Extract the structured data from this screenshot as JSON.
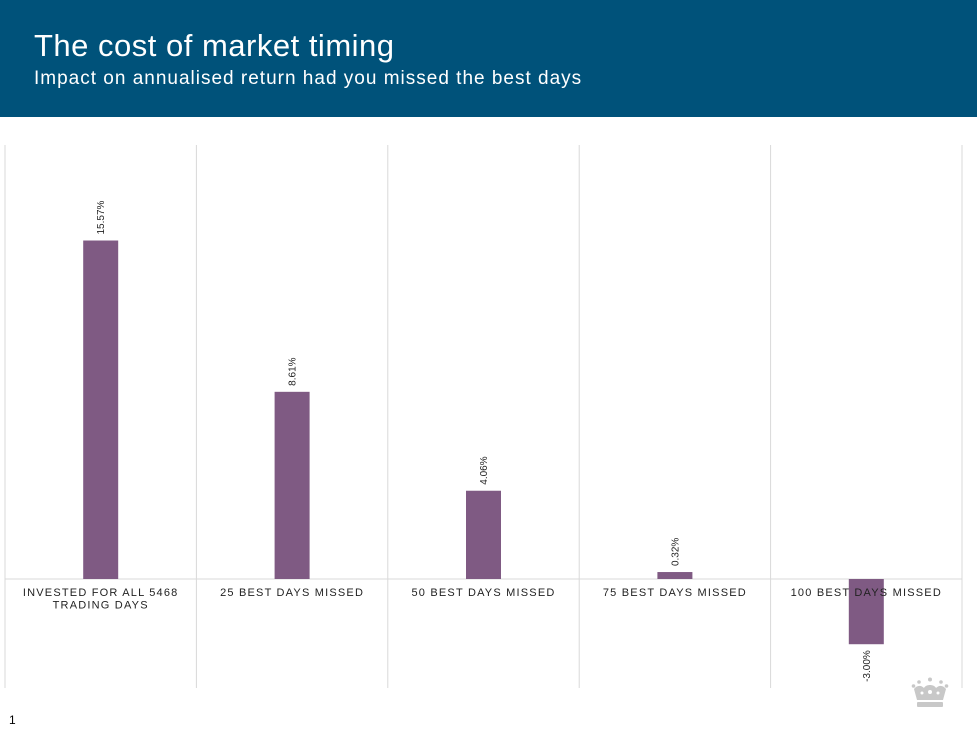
{
  "header": {
    "title": "The cost of market timing",
    "subtitle": "Impact on annualised return had you missed the best days"
  },
  "footer": {
    "page_number": "1"
  },
  "colors": {
    "header_bg": "#00527a",
    "bar": "#7f5a83",
    "grid": "#d9d9d9"
  },
  "logo": {
    "icon": "crown-icon"
  },
  "chart_data": {
    "type": "bar",
    "title": "",
    "xlabel": "",
    "ylabel": "",
    "categories": [
      [
        "INVESTED FOR ALL 5468",
        "TRADING DAYS"
      ],
      [
        "25 BEST DAYS MISSED"
      ],
      [
        "50 BEST DAYS MISSED"
      ],
      [
        "75 BEST DAYS MISSED"
      ],
      [
        "100 BEST DAYS MISSED"
      ]
    ],
    "values": [
      15.57,
      8.61,
      4.06,
      0.32,
      -3.0
    ],
    "data_labels": [
      "15.57%",
      "8.61%",
      "4.06%",
      "0.32%",
      "-3.00%"
    ],
    "ylim": [
      -5.0,
      20.0
    ],
    "grid": "vertical separators",
    "legend": "none"
  }
}
